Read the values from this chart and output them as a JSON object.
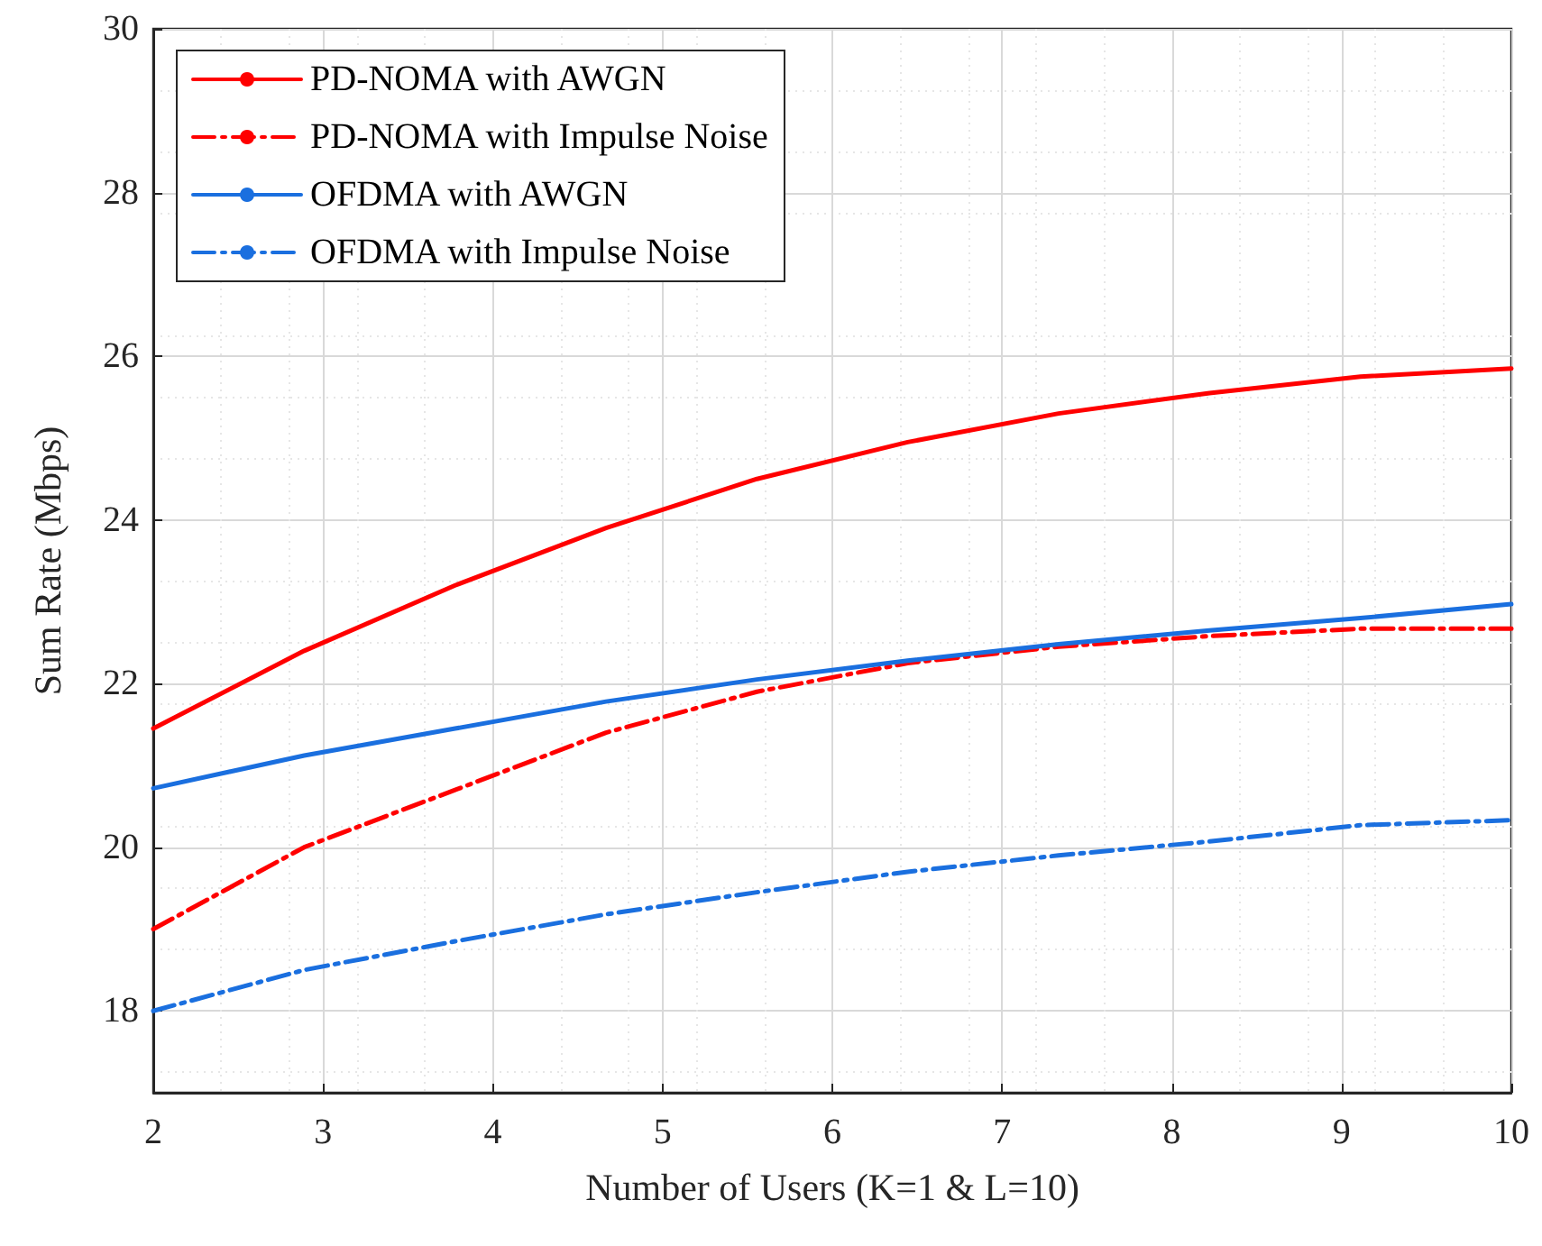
{
  "chart_data": {
    "type": "line",
    "xlabel": "Number of Users (K=1 & L=10)",
    "ylabel": "Sum Rate (Mbps)",
    "x": [
      2,
      2.889,
      3.778,
      4.667,
      5.556,
      6.444,
      7.333,
      8.222,
      9.111,
      10
    ],
    "series": [
      {
        "name": "PD-NOMA with AWGN",
        "color": "#ff0000",
        "line_style": "solid",
        "values": [
          21.45,
          22.4,
          23.2,
          23.9,
          24.5,
          24.95,
          25.3,
          25.55,
          25.75,
          25.85
        ]
      },
      {
        "name": "PD-NOMA with Impulse Noise",
        "color": "#ff0000",
        "line_style": "dashed",
        "values": [
          19.0,
          20.0,
          20.7,
          21.4,
          21.9,
          22.25,
          22.45,
          22.58,
          22.67,
          22.67
        ]
      },
      {
        "name": "OFDMA with AWGN",
        "color": "#1a6fdf",
        "line_style": "solid",
        "values": [
          20.72,
          21.12,
          21.45,
          21.78,
          22.05,
          22.28,
          22.48,
          22.65,
          22.8,
          22.97
        ]
      },
      {
        "name": "OFDMA with Impulse Noise",
        "color": "#1a6fdf",
        "line_style": "dashed",
        "values": [
          18.0,
          18.5,
          18.85,
          19.18,
          19.45,
          19.7,
          19.9,
          20.07,
          20.27,
          20.33
        ]
      }
    ],
    "xlim": [
      2,
      10
    ],
    "xticks": [
      2,
      3,
      4,
      5,
      6,
      7,
      8,
      9,
      10
    ],
    "ylim": [
      17,
      30
    ],
    "yticks": [
      18,
      20,
      22,
      24,
      26,
      28,
      30
    ],
    "grid": true,
    "legend": "top left",
    "marker": "none"
  }
}
